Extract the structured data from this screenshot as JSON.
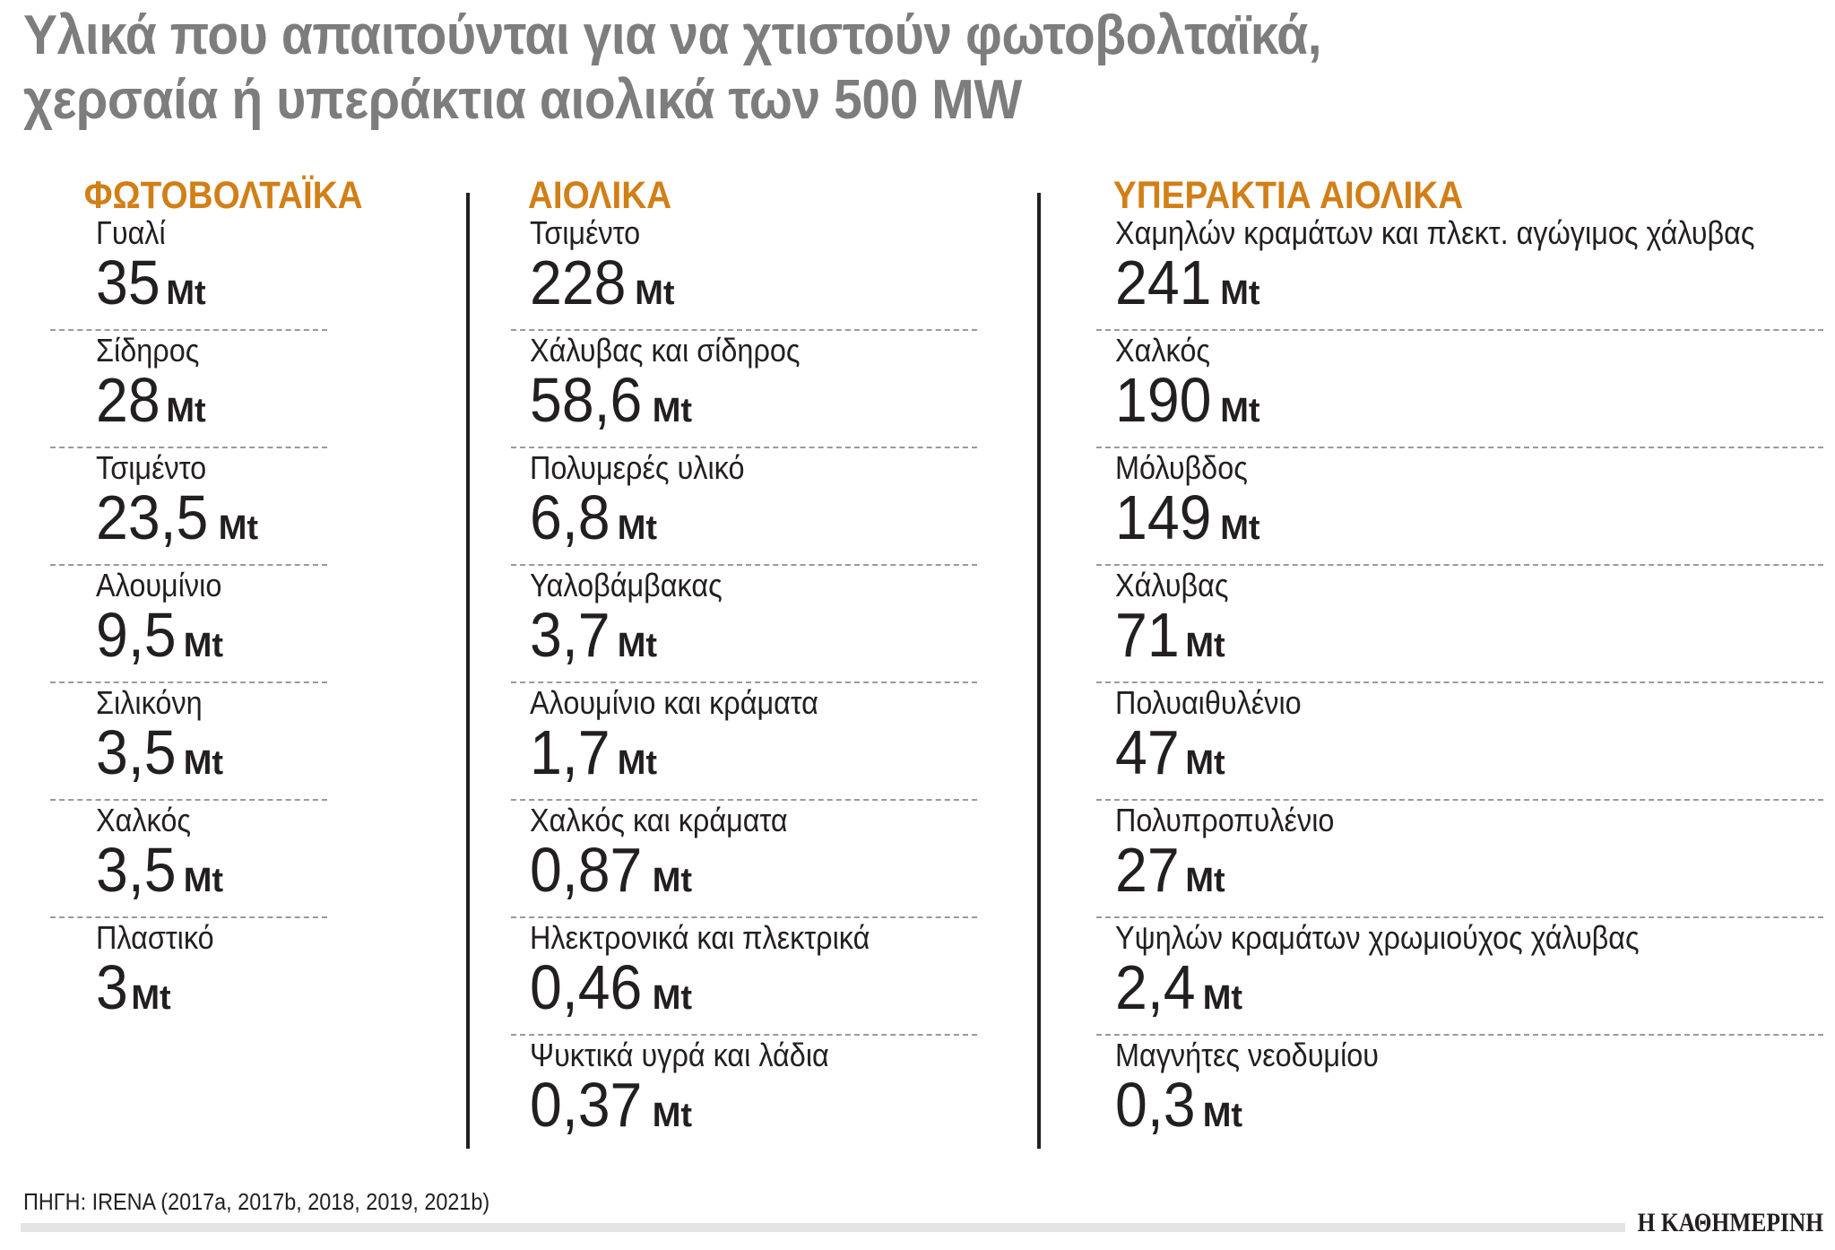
{
  "title": {
    "line1": "Υλικά που απαιτούνται για να χτιστούν φωτοβολταϊκά,",
    "line2": "χερσαία ή υπεράκτια αιολικά των 500 MW"
  },
  "accent_color": "#d17f17",
  "unit": "Mt",
  "columns": [
    {
      "heading": "ΦΩΤΟΒΟΛΤΑΪΚΑ",
      "items": [
        {
          "label": "Γυαλί",
          "value": "35"
        },
        {
          "label": "Σίδηρος",
          "value": "28"
        },
        {
          "label": "Τσιμέντο",
          "value": "23,5"
        },
        {
          "label": "Αλουμίνιο",
          "value": "9,5"
        },
        {
          "label": "Σιλικόνη",
          "value": "3,5"
        },
        {
          "label": "Χαλκός",
          "value": "3,5"
        },
        {
          "label": "Πλαστικό",
          "value": "3"
        }
      ]
    },
    {
      "heading": "ΑΙΟΛΙΚΑ",
      "items": [
        {
          "label": "Τσιμέντο",
          "value": "228"
        },
        {
          "label": "Χάλυβας και σίδηρος",
          "value": "58,6"
        },
        {
          "label": "Πολυμερές υλικό",
          "value": "6,8"
        },
        {
          "label": "Υαλοβάμβακας",
          "value": "3,7"
        },
        {
          "label": "Αλουμίνιο και κράματα",
          "value": "1,7"
        },
        {
          "label": "Χαλκός και κράματα",
          "value": "0,87"
        },
        {
          "label": "Ηλεκτρονικά και πλεκτρικά",
          "value": "0,46"
        },
        {
          "label": "Ψυκτικά υγρά και λάδια",
          "value": "0,37"
        }
      ]
    },
    {
      "heading": "ΥΠΕΡΑΚΤΙΑ ΑΙΟΛΙΚΑ",
      "items": [
        {
          "label": "Χαμηλών κραμάτων και πλεκτ. αγώγιμος χάλυβας",
          "value": "241"
        },
        {
          "label": "Χαλκός",
          "value": "190"
        },
        {
          "label": "Μόλυβδος",
          "value": "149"
        },
        {
          "label": "Χάλυβας",
          "value": "71"
        },
        {
          "label": "Πολυαιθυλένιο",
          "value": "47"
        },
        {
          "label": "Πολυπροπυλένιο",
          "value": "27"
        },
        {
          "label": "Υψηλών κραμάτων χρωμιούχος χάλυβας",
          "value": "2,4"
        },
        {
          "label": "Μαγνήτες νεοδυμίου",
          "value": "0,3"
        }
      ]
    }
  ],
  "footer": {
    "source": "ΠΗΓΗ: IRENA (2017a, 2017b, 2018, 2019, 2021b)",
    "logo": "Η ΚΑΘΗΜΕΡΙΝΗ"
  }
}
